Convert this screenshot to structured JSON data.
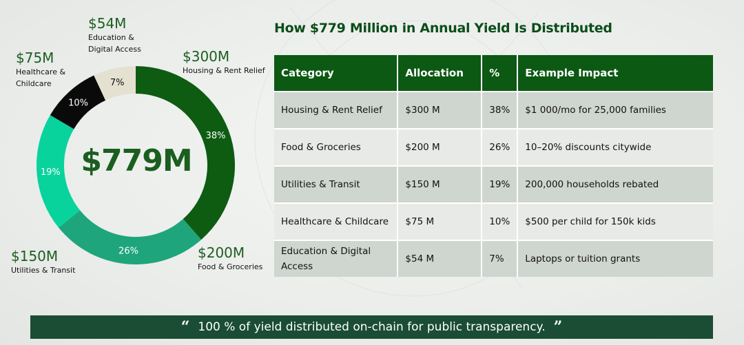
{
  "colors": {
    "accent_dark": "#0c5913",
    "banner_bg": "#1a4d33",
    "slice_colors": [
      "#0d5c12",
      "#1fa57c",
      "#08d39d",
      "#0a0a0a",
      "#e5e1d1"
    ]
  },
  "title": "How $779 Million in Annual Yield Is Distributed",
  "chart_data": {
    "type": "pie",
    "variant": "donut",
    "center_label": "$779M",
    "slices": [
      {
        "category": "Housing & Rent Relief",
        "value": 300,
        "value_label": "$300M",
        "percent_label": "38%"
      },
      {
        "category": "Food & Groceries",
        "value": 200,
        "value_label": "$200M",
        "percent_label": "26%"
      },
      {
        "category": "Utilities & Transit",
        "value": 150,
        "value_label": "$150M",
        "percent_label": "19%"
      },
      {
        "category": "Healthcare & Childcare",
        "value": 75,
        "value_label": "$75M",
        "percent_label": "10%"
      },
      {
        "category": "Education & Digital Access",
        "value": 54,
        "value_label": "$54M",
        "percent_label": "7%"
      }
    ]
  },
  "table": {
    "headers": [
      "Category",
      "Allocation",
      "%",
      "Example Impact"
    ],
    "rows": [
      [
        "Housing & Rent Relief",
        "$300 M",
        "38%",
        "$1 000/mo for 25,000 families"
      ],
      [
        "Food & Groceries",
        "$200 M",
        "26%",
        "10–20% discounts citywide"
      ],
      [
        "Utilities & Transit",
        "$150 M",
        "19%",
        "200,000 households rebated"
      ],
      [
        "Healthcare & Childcare",
        "$75 M",
        "10%",
        "$500 per child for 150k kids"
      ],
      [
        "Education & Digital Access",
        "$54 M",
        "7%",
        "Laptops or tuition grants"
      ]
    ]
  },
  "banner": {
    "open_quote": "“",
    "text": "100 % of yield distributed on-chain for public transparency.",
    "close_quote": "”"
  },
  "external_labels": {
    "education": {
      "amount": "$54M",
      "line1": "Education &",
      "line2": "Digital Access"
    },
    "healthcare": {
      "amount": "$75M",
      "line1": "Healthcare &",
      "line2": "Childcare"
    },
    "housing": {
      "amount": "$300M",
      "line1": "Housing & Rent Relief"
    },
    "utilities": {
      "amount": "$150M",
      "line1": "Utilities & Transit"
    },
    "food": {
      "amount": "$200M",
      "line1": "Food & Groceries"
    }
  }
}
